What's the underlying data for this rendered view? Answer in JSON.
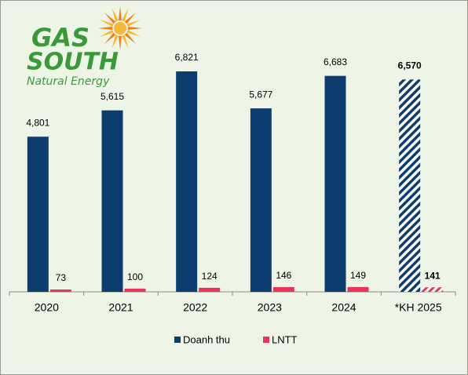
{
  "logo": {
    "line1": "GAS",
    "line2": "SOUTH",
    "tagline": "Natural Energy"
  },
  "chart_data": {
    "type": "bar",
    "categories": [
      "2020",
      "2021",
      "2022",
      "2023",
      "2024",
      "*KH 2025"
    ],
    "series": [
      {
        "name": "Doanh thu",
        "color": "#0d3c6e",
        "values": [
          4801,
          5615,
          6821,
          5677,
          6683,
          6570
        ],
        "value_labels": [
          "4,801",
          "5,615",
          "6,821",
          "5,677",
          "6,683",
          "6,570"
        ]
      },
      {
        "name": "LNTT",
        "color": "#e8335a",
        "values": [
          73,
          100,
          124,
          146,
          149,
          141
        ]
      }
    ],
    "legend": "bottom"
  }
}
